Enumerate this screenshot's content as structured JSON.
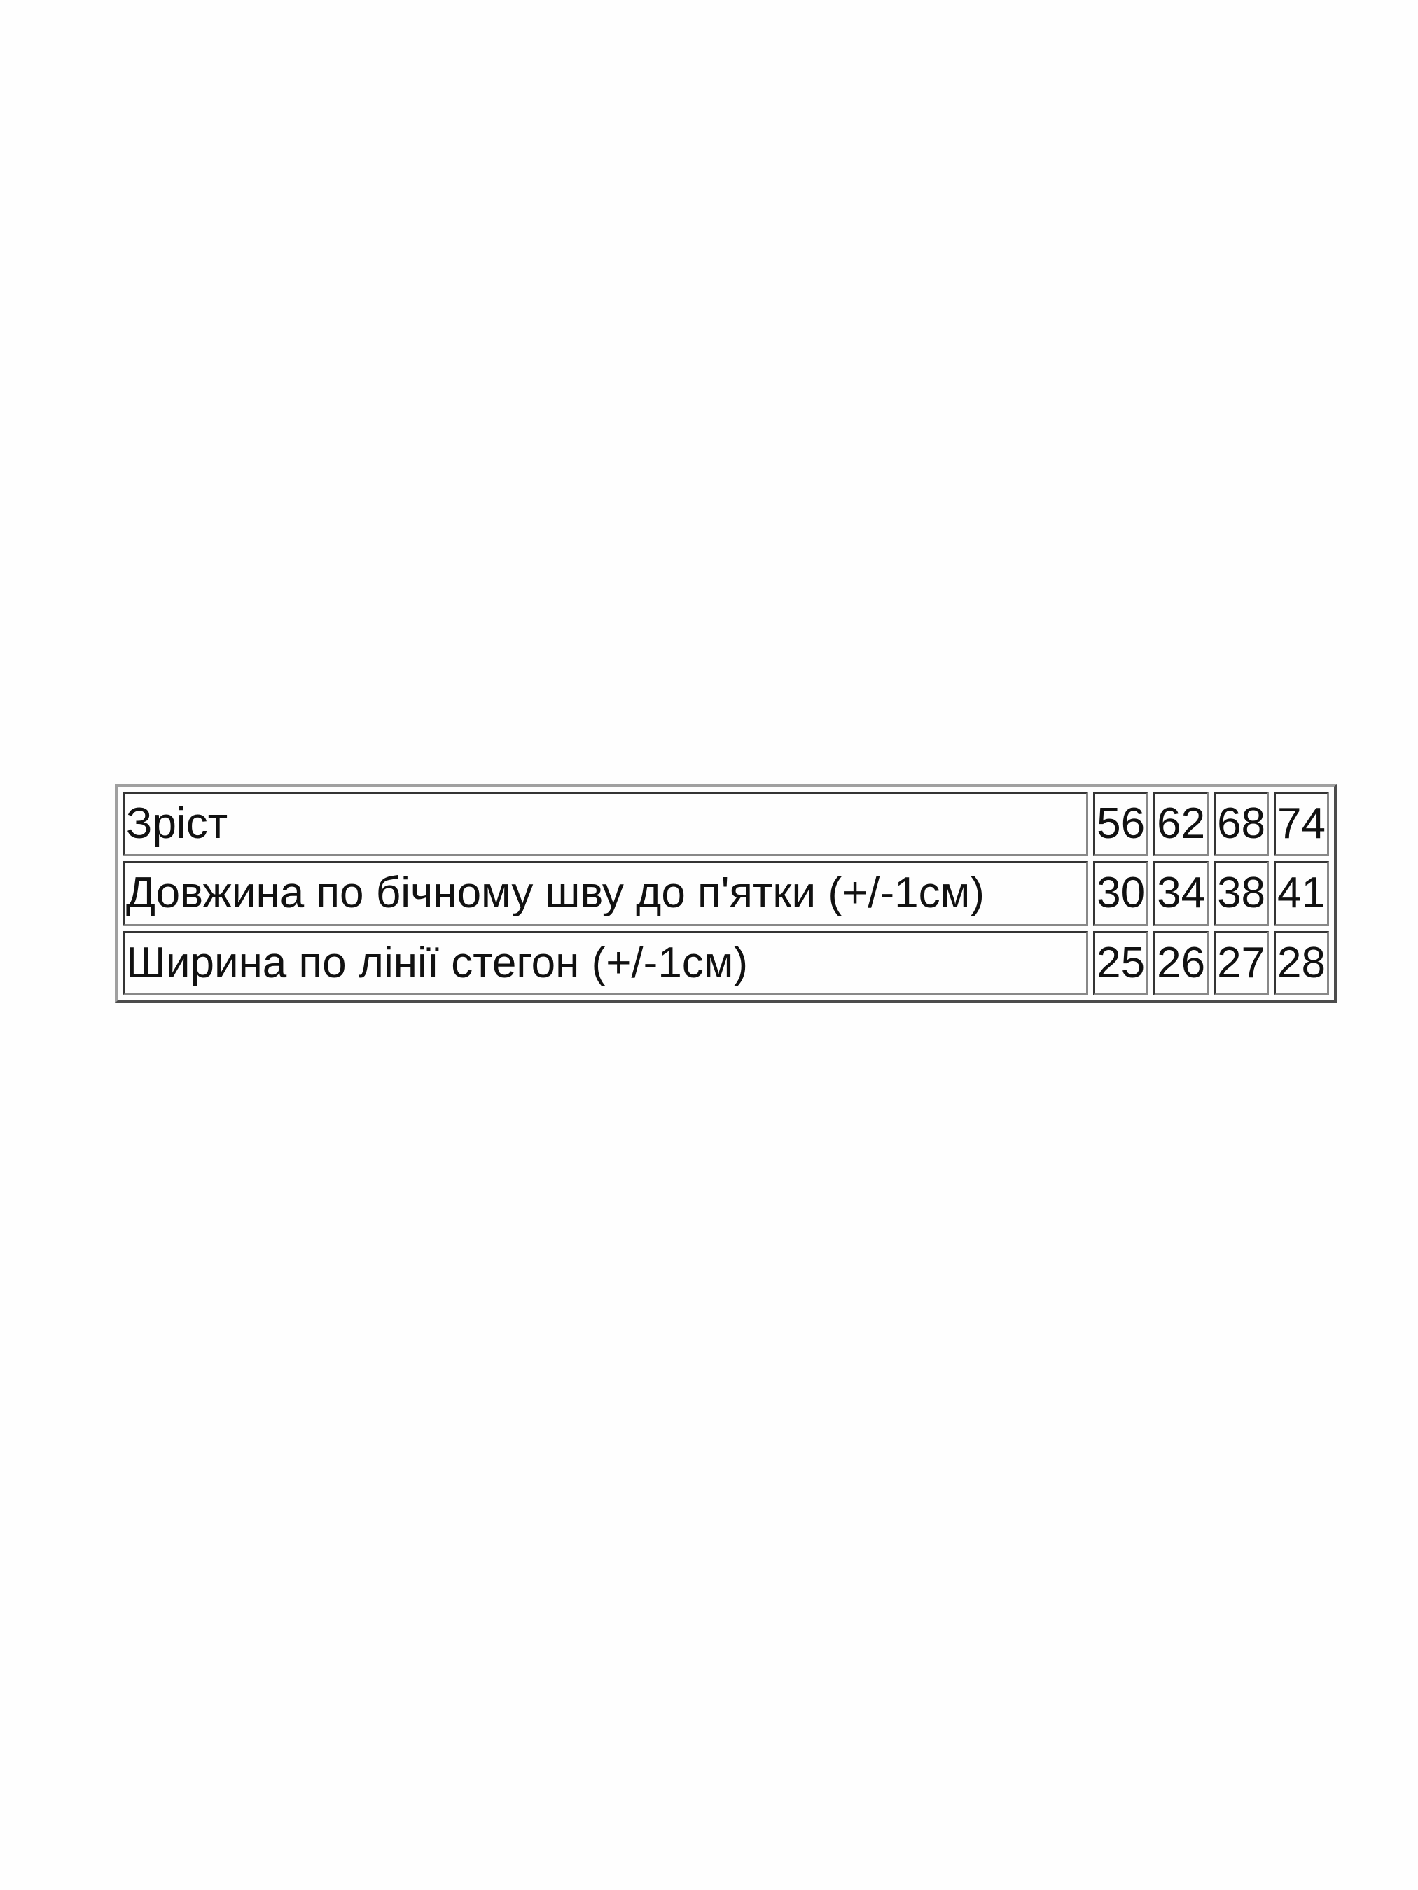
{
  "table": {
    "rows": [
      {
        "label": "Зріст",
        "values": [
          "56",
          "62",
          "68",
          "74"
        ]
      },
      {
        "label": "Довжина по бічному шву до п'ятки (+/-1см)",
        "values": [
          "30",
          "34",
          "38",
          "41"
        ]
      },
      {
        "label": "Ширина по лінії стегон (+/-1см)",
        "values": [
          "25",
          "26",
          "27",
          "28"
        ]
      }
    ]
  }
}
